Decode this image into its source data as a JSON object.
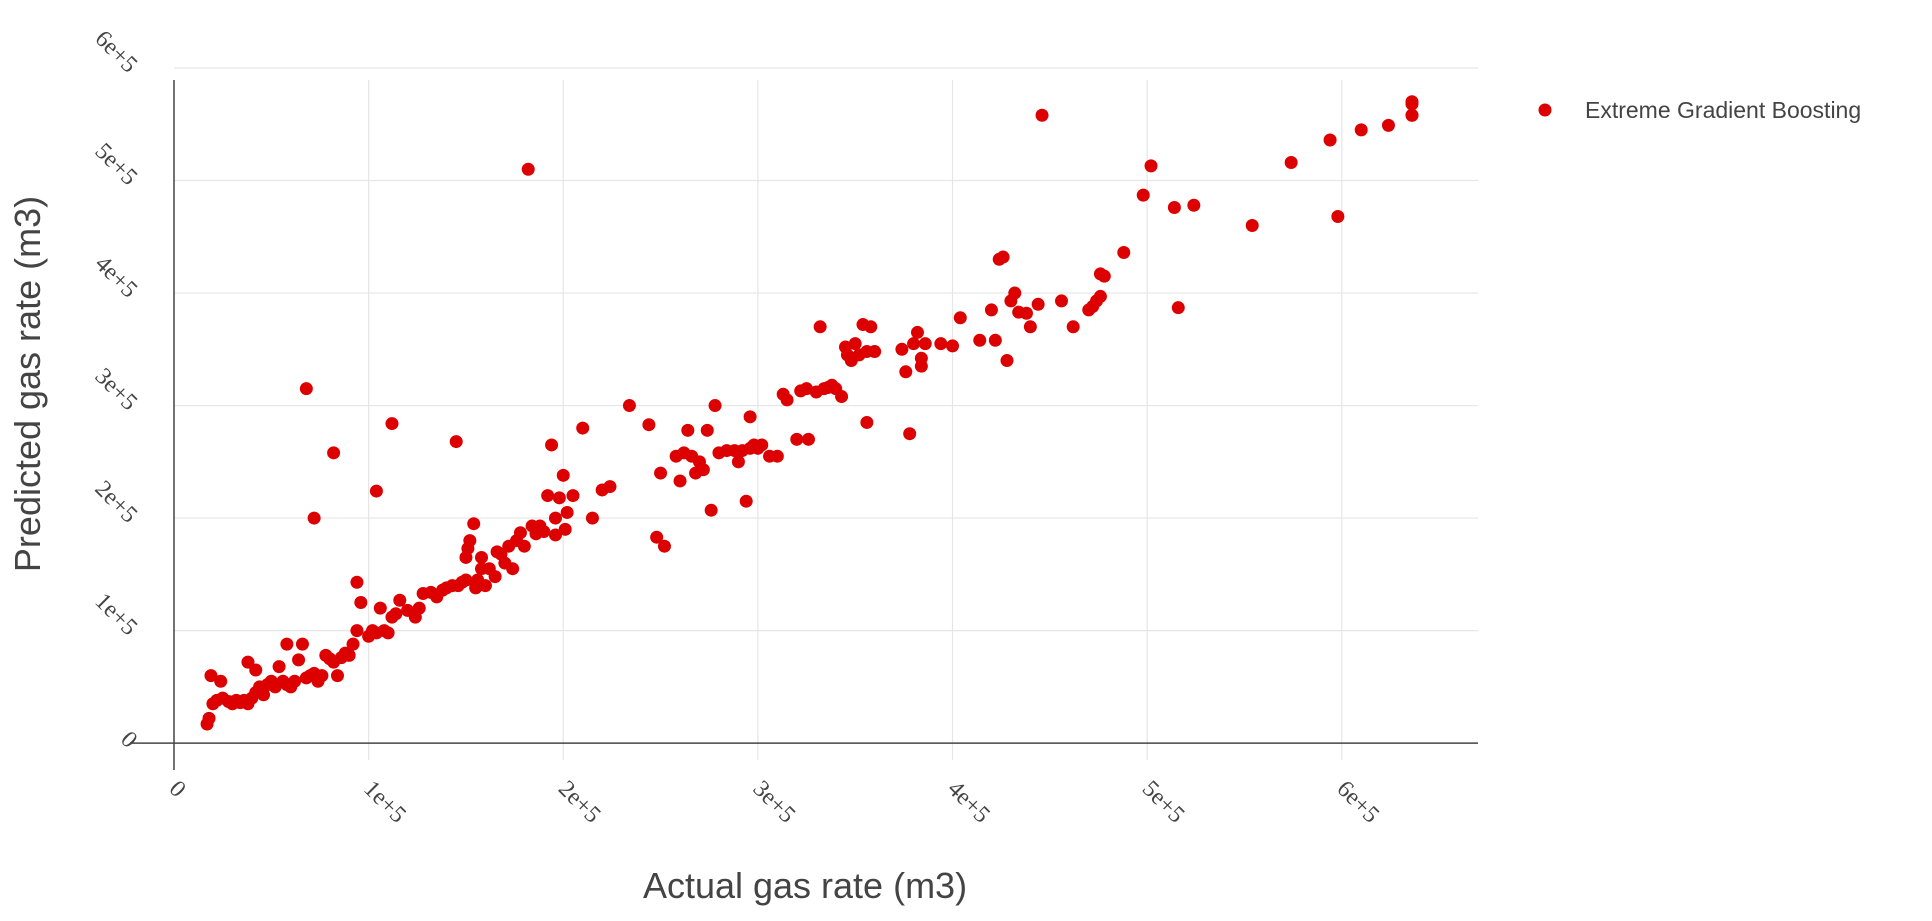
{
  "chart_data": {
    "type": "scatter",
    "title": "",
    "xlabel": "Actual gas rate (m3)",
    "ylabel": "Predicted gas rate (m3)",
    "xlim": [
      0,
      670000
    ],
    "ylim": [
      -15000,
      600000
    ],
    "xticks": [
      0,
      100000,
      200000,
      300000,
      400000,
      500000,
      600000
    ],
    "xtick_labels": [
      "0",
      "1e+5",
      "2e+5",
      "3e+5",
      "4e+5",
      "5e+5",
      "6e+5"
    ],
    "yticks": [
      0,
      100000,
      200000,
      300000,
      400000,
      500000,
      600000
    ],
    "ytick_labels": [
      "0",
      "1e+5",
      "2e+5",
      "3e+5",
      "4e+5",
      "5e+5",
      "6e+5"
    ],
    "grid": true,
    "legend_position": "top-right",
    "series": [
      {
        "name": "Extreme Gradient Boosting",
        "color": "#dd0000",
        "points": [
          [
            17000,
            17000
          ],
          [
            18000,
            22000
          ],
          [
            20000,
            35000
          ],
          [
            19000,
            60000
          ],
          [
            24000,
            55000
          ],
          [
            22000,
            38000
          ],
          [
            25000,
            40000
          ],
          [
            28000,
            37000
          ],
          [
            30000,
            35000
          ],
          [
            32000,
            38000
          ],
          [
            34000,
            36000
          ],
          [
            36000,
            38000
          ],
          [
            38000,
            35000
          ],
          [
            40000,
            40000
          ],
          [
            42000,
            45000
          ],
          [
            44000,
            50000
          ],
          [
            46000,
            43000
          ],
          [
            48000,
            52000
          ],
          [
            38000,
            72000
          ],
          [
            42000,
            65000
          ],
          [
            50000,
            55000
          ],
          [
            52000,
            50000
          ],
          [
            54000,
            68000
          ],
          [
            56000,
            55000
          ],
          [
            58000,
            52000
          ],
          [
            60000,
            50000
          ],
          [
            62000,
            55000
          ],
          [
            58000,
            88000
          ],
          [
            64000,
            74000
          ],
          [
            66000,
            88000
          ],
          [
            68000,
            58000
          ],
          [
            70000,
            60000
          ],
          [
            72000,
            62000
          ],
          [
            74000,
            55000
          ],
          [
            76000,
            60000
          ],
          [
            78000,
            78000
          ],
          [
            80000,
            75000
          ],
          [
            82000,
            72000
          ],
          [
            84000,
            60000
          ],
          [
            86000,
            76000
          ],
          [
            88000,
            80000
          ],
          [
            90000,
            78000
          ],
          [
            92000,
            88000
          ],
          [
            94000,
            100000
          ],
          [
            96000,
            125000
          ],
          [
            94000,
            143000
          ],
          [
            100000,
            95000
          ],
          [
            102000,
            100000
          ],
          [
            104000,
            98000
          ],
          [
            106000,
            120000
          ],
          [
            108000,
            100000
          ],
          [
            110000,
            98000
          ],
          [
            112000,
            112000
          ],
          [
            114000,
            115000
          ],
          [
            116000,
            127000
          ],
          [
            120000,
            118000
          ],
          [
            124000,
            112000
          ],
          [
            126000,
            120000
          ],
          [
            128000,
            133000
          ],
          [
            132000,
            134000
          ],
          [
            135000,
            130000
          ],
          [
            138000,
            136000
          ],
          [
            140000,
            138000
          ],
          [
            143000,
            140000
          ],
          [
            146000,
            140000
          ],
          [
            148000,
            143000
          ],
          [
            150000,
            145000
          ],
          [
            150000,
            165000
          ],
          [
            151000,
            173000
          ],
          [
            152000,
            180000
          ],
          [
            154000,
            195000
          ],
          [
            155000,
            138000
          ],
          [
            156000,
            145000
          ],
          [
            158000,
            155000
          ],
          [
            158000,
            165000
          ],
          [
            160000,
            140000
          ],
          [
            162000,
            155000
          ],
          [
            165000,
            148000
          ],
          [
            166000,
            170000
          ],
          [
            168000,
            168000
          ],
          [
            170000,
            160000
          ],
          [
            172000,
            175000
          ],
          [
            174000,
            155000
          ],
          [
            176000,
            180000
          ],
          [
            178000,
            187000
          ],
          [
            180000,
            175000
          ],
          [
            184000,
            193000
          ],
          [
            186000,
            186000
          ],
          [
            188000,
            193000
          ],
          [
            190000,
            188000
          ],
          [
            192000,
            220000
          ],
          [
            194000,
            265000
          ],
          [
            196000,
            185000
          ],
          [
            196000,
            200000
          ],
          [
            198000,
            218000
          ],
          [
            200000,
            238000
          ],
          [
            201000,
            190000
          ],
          [
            202000,
            205000
          ],
          [
            205000,
            220000
          ],
          [
            210000,
            280000
          ],
          [
            215000,
            200000
          ],
          [
            220000,
            225000
          ],
          [
            224000,
            228000
          ],
          [
            234000,
            300000
          ],
          [
            244000,
            283000
          ],
          [
            248000,
            183000
          ],
          [
            250000,
            240000
          ],
          [
            252000,
            175000
          ],
          [
            258000,
            255000
          ],
          [
            260000,
            233000
          ],
          [
            262000,
            258000
          ],
          [
            264000,
            278000
          ],
          [
            266000,
            255000
          ],
          [
            268000,
            240000
          ],
          [
            270000,
            250000
          ],
          [
            272000,
            243000
          ],
          [
            274000,
            278000
          ],
          [
            276000,
            207000
          ],
          [
            278000,
            300000
          ],
          [
            280000,
            258000
          ],
          [
            284000,
            260000
          ],
          [
            288000,
            260000
          ],
          [
            290000,
            250000
          ],
          [
            292000,
            260000
          ],
          [
            294000,
            215000
          ],
          [
            296000,
            262000
          ],
          [
            296000,
            290000
          ],
          [
            298000,
            265000
          ],
          [
            300000,
            262000
          ],
          [
            302000,
            265000
          ],
          [
            306000,
            255000
          ],
          [
            310000,
            255000
          ],
          [
            313000,
            310000
          ],
          [
            315000,
            305000
          ],
          [
            320000,
            270000
          ],
          [
            322000,
            313000
          ],
          [
            325000,
            315000
          ],
          [
            326000,
            270000
          ],
          [
            330000,
            312000
          ],
          [
            332000,
            370000
          ],
          [
            334000,
            315000
          ],
          [
            336000,
            316000
          ],
          [
            338000,
            318000
          ],
          [
            340000,
            315000
          ],
          [
            343000,
            308000
          ],
          [
            345000,
            352000
          ],
          [
            346000,
            345000
          ],
          [
            348000,
            340000
          ],
          [
            350000,
            355000
          ],
          [
            352000,
            345000
          ],
          [
            354000,
            372000
          ],
          [
            356000,
            285000
          ],
          [
            356000,
            348000
          ],
          [
            358000,
            370000
          ],
          [
            360000,
            348000
          ],
          [
            374000,
            350000
          ],
          [
            376000,
            330000
          ],
          [
            378000,
            275000
          ],
          [
            380000,
            355000
          ],
          [
            382000,
            365000
          ],
          [
            384000,
            342000
          ],
          [
            384000,
            335000
          ],
          [
            386000,
            355000
          ],
          [
            394000,
            355000
          ],
          [
            400000,
            353000
          ],
          [
            404000,
            378000
          ],
          [
            414000,
            358000
          ],
          [
            420000,
            385000
          ],
          [
            422000,
            358000
          ],
          [
            424000,
            430000
          ],
          [
            426000,
            432000
          ],
          [
            428000,
            340000
          ],
          [
            430000,
            393000
          ],
          [
            432000,
            400000
          ],
          [
            434000,
            383000
          ],
          [
            438000,
            382000
          ],
          [
            440000,
            370000
          ],
          [
            444000,
            390000
          ],
          [
            446000,
            558000
          ],
          [
            456000,
            393000
          ],
          [
            462000,
            370000
          ],
          [
            470000,
            385000
          ],
          [
            472000,
            388000
          ],
          [
            474000,
            393000
          ],
          [
            476000,
            397000
          ],
          [
            476000,
            417000
          ],
          [
            478000,
            415000
          ],
          [
            488000,
            436000
          ],
          [
            498000,
            487000
          ],
          [
            502000,
            513000
          ],
          [
            514000,
            476000
          ],
          [
            516000,
            387000
          ],
          [
            524000,
            478000
          ],
          [
            554000,
            460000
          ],
          [
            574000,
            516000
          ],
          [
            594000,
            536000
          ],
          [
            598000,
            468000
          ],
          [
            610000,
            545000
          ],
          [
            624000,
            549000
          ],
          [
            645000,
            568000
          ],
          [
            680000,
            570000
          ],
          [
            675000,
            558000
          ],
          [
            682000,
            558000
          ],
          [
            68000,
            315000
          ],
          [
            72000,
            200000
          ],
          [
            82000,
            258000
          ],
          [
            104000,
            224000
          ],
          [
            112000,
            284000
          ],
          [
            145000,
            268000
          ],
          [
            182000,
            510000
          ]
        ]
      }
    ]
  }
}
